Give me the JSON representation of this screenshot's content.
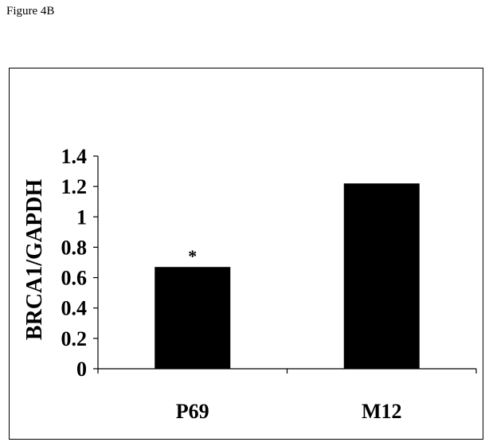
{
  "figure_label": "Figure 4B",
  "chart_data": {
    "type": "bar",
    "categories": [
      "P69",
      "M12"
    ],
    "values": [
      0.67,
      1.22
    ],
    "ylabel": "BRCA1/GAPDH",
    "xlabel": "",
    "ylim": [
      0,
      1.4
    ],
    "yticks": [
      "0",
      "0.2",
      "0.4",
      "0.6",
      "0.8",
      "1",
      "1.2",
      "1.4"
    ],
    "annotations": [
      {
        "category": "P69",
        "text": "*"
      }
    ],
    "bar_color": "#000000",
    "grid": false,
    "legend": "none"
  }
}
